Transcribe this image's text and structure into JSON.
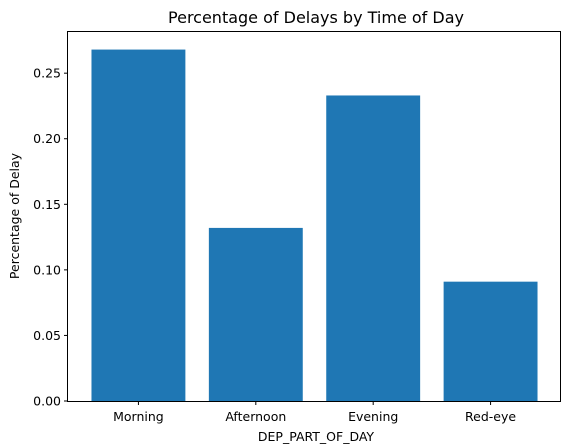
{
  "chart_data": {
    "type": "bar",
    "title": "Percentage of Delays by Time of Day",
    "xlabel": "DEP_PART_OF_DAY",
    "ylabel": "Percentage of Delay",
    "categories": [
      "Morning",
      "Afternoon",
      "Evening",
      "Red-eye"
    ],
    "values": [
      0.268,
      0.132,
      0.233,
      0.091
    ],
    "ylim": [
      0,
      0.2814
    ],
    "yticks": [
      0.0,
      0.05,
      0.1,
      0.15,
      0.2,
      0.25
    ],
    "ytick_labels": [
      "0.00",
      "0.05",
      "0.10",
      "0.15",
      "0.20",
      "0.25"
    ],
    "grid": false,
    "bar_color": "#1f77b4"
  }
}
